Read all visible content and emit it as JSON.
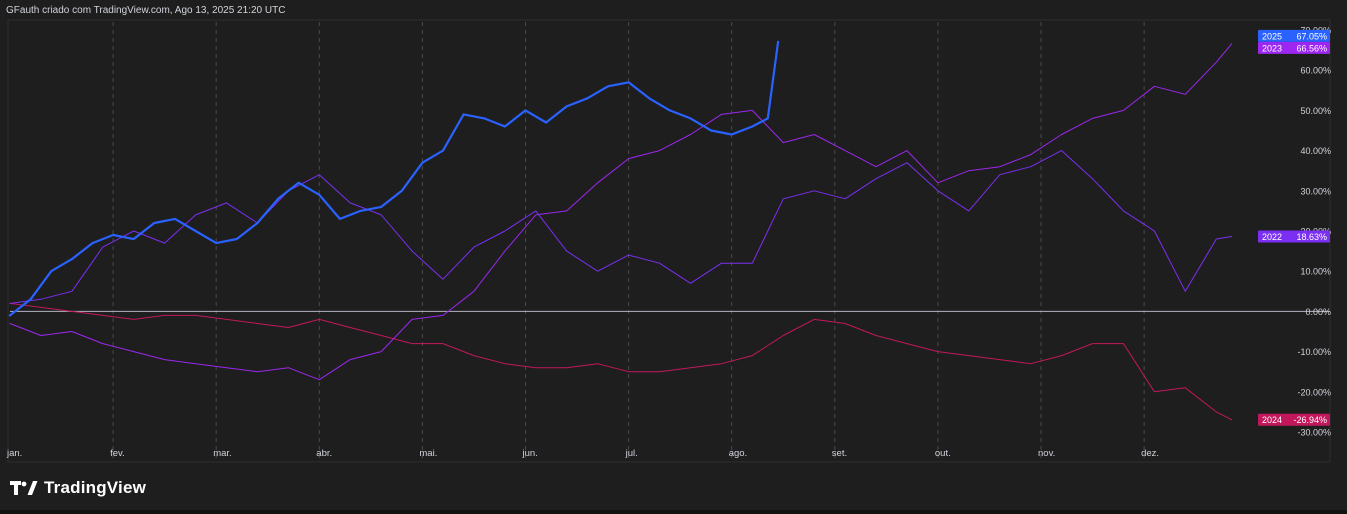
{
  "header": {
    "caption": "GFauth criado com TradingView.com, Ago 13, 2025 21:20 UTC"
  },
  "brand": {
    "name": "TradingView",
    "logo_icon": "tradingview-logo-icon"
  },
  "colors": {
    "background": "#1e1e1e",
    "grid": "#4a4a4a",
    "axis_text": "#d1d4dc",
    "zero_line": "#b2b5be",
    "series_2025": "#2962ff",
    "series_2023": "#9c27f0",
    "series_2022": "#7b2ff2",
    "series_2024": "#c2185b"
  },
  "chart_data": {
    "type": "line",
    "xlabel": "",
    "ylabel": "",
    "x_range": [
      0,
      12
    ],
    "ylim": [
      -30,
      70
    ],
    "grid": {
      "vertical": true,
      "horizontal": false
    },
    "months": [
      "jan.",
      "fev.",
      "mar.",
      "abr.",
      "mai.",
      "jun.",
      "jul.",
      "ago.",
      "set.",
      "out.",
      "nov.",
      "dez."
    ],
    "y_ticks": [
      "70.00%",
      "60.00%",
      "50.00%",
      "40.00%",
      "30.00%",
      "20.00%",
      "10.00%",
      "0.00%",
      "-10.00%",
      "-20.00%",
      "-30.00%"
    ],
    "y_tick_values": [
      70,
      60,
      50,
      40,
      30,
      20,
      10,
      0,
      -10,
      -20,
      -30
    ],
    "series": [
      {
        "name": "2025",
        "last_label": "67.05%",
        "last_value": 67.05,
        "line_width": 2.2,
        "x": [
          0,
          0.2,
          0.4,
          0.6,
          0.8,
          1.0,
          1.2,
          1.4,
          1.6,
          1.8,
          2.0,
          2.2,
          2.4,
          2.6,
          2.8,
          3.0,
          3.2,
          3.4,
          3.6,
          3.8,
          4.0,
          4.2,
          4.4,
          4.6,
          4.8,
          5.0,
          5.2,
          5.4,
          5.6,
          5.8,
          6.0,
          6.2,
          6.4,
          6.6,
          6.8,
          7.0,
          7.2,
          7.35,
          7.45
        ],
        "y": [
          -1,
          3,
          10,
          13,
          17,
          19,
          18,
          22,
          23,
          20,
          17,
          18,
          22,
          28,
          32,
          29,
          23,
          25,
          26,
          30,
          37,
          40,
          49,
          48,
          46,
          50,
          47,
          51,
          53,
          56,
          57,
          53,
          50,
          48,
          45,
          44,
          46,
          48,
          67.05
        ]
      },
      {
        "name": "2023",
        "last_label": "66.56%",
        "last_value": 66.56,
        "line_width": 1,
        "x": [
          0,
          0.3,
          0.6,
          0.9,
          1.2,
          1.5,
          1.8,
          2.1,
          2.4,
          2.7,
          3.0,
          3.3,
          3.6,
          3.9,
          4.2,
          4.5,
          4.8,
          5.1,
          5.4,
          5.7,
          6.0,
          6.3,
          6.6,
          6.9,
          7.2,
          7.5,
          7.8,
          8.1,
          8.4,
          8.7,
          9.0,
          9.3,
          9.6,
          9.9,
          10.2,
          10.5,
          10.8,
          11.1,
          11.4,
          11.7,
          11.85
        ],
        "y": [
          -3,
          -6,
          -5,
          -8,
          -10,
          -12,
          -13,
          -14,
          -15,
          -14,
          -17,
          -12,
          -10,
          -2,
          -1,
          5,
          15,
          24,
          25,
          32,
          38,
          40,
          44,
          49,
          50,
          42,
          44,
          40,
          36,
          40,
          32,
          35,
          36,
          39,
          44,
          48,
          50,
          56,
          54,
          62,
          66.56
        ]
      },
      {
        "name": "2022",
        "last_label": "18.63%",
        "last_value": 18.63,
        "line_width": 1,
        "x": [
          0,
          0.3,
          0.6,
          0.9,
          1.2,
          1.5,
          1.8,
          2.1,
          2.4,
          2.7,
          3.0,
          3.3,
          3.6,
          3.9,
          4.2,
          4.5,
          4.8,
          5.1,
          5.4,
          5.7,
          6.0,
          6.3,
          6.6,
          6.9,
          7.2,
          7.5,
          7.8,
          8.1,
          8.4,
          8.7,
          9.0,
          9.3,
          9.6,
          9.9,
          10.2,
          10.5,
          10.8,
          11.1,
          11.4,
          11.7,
          11.85
        ],
        "y": [
          2,
          3,
          5,
          16,
          20,
          17,
          24,
          27,
          22,
          30,
          34,
          27,
          24,
          15,
          8,
          16,
          20,
          25,
          15,
          10,
          14,
          12,
          7,
          12,
          12,
          28,
          30,
          28,
          33,
          37,
          30,
          25,
          34,
          36,
          40,
          33,
          25,
          20,
          5,
          18,
          18.63
        ]
      },
      {
        "name": "2024",
        "last_label": "-26.94%",
        "last_value": -26.94,
        "line_width": 1,
        "x": [
          0,
          0.3,
          0.6,
          0.9,
          1.2,
          1.5,
          1.8,
          2.1,
          2.4,
          2.7,
          3.0,
          3.3,
          3.6,
          3.9,
          4.2,
          4.5,
          4.8,
          5.1,
          5.4,
          5.7,
          6.0,
          6.3,
          6.6,
          6.9,
          7.2,
          7.5,
          7.8,
          8.1,
          8.4,
          8.7,
          9.0,
          9.3,
          9.6,
          9.9,
          10.2,
          10.5,
          10.8,
          11.1,
          11.4,
          11.7,
          11.85
        ],
        "y": [
          2,
          1,
          0,
          -1,
          -2,
          -1,
          -1,
          -2,
          -3,
          -4,
          -2,
          -4,
          -6,
          -8,
          -8,
          -11,
          -13,
          -14,
          -14,
          -13,
          -15,
          -15,
          -14,
          -13,
          -11,
          -6,
          -2,
          -3,
          -6,
          -8,
          -10,
          -11,
          -12,
          -13,
          -11,
          -8,
          -8,
          -20,
          -19,
          -25,
          -26.94
        ]
      }
    ]
  }
}
